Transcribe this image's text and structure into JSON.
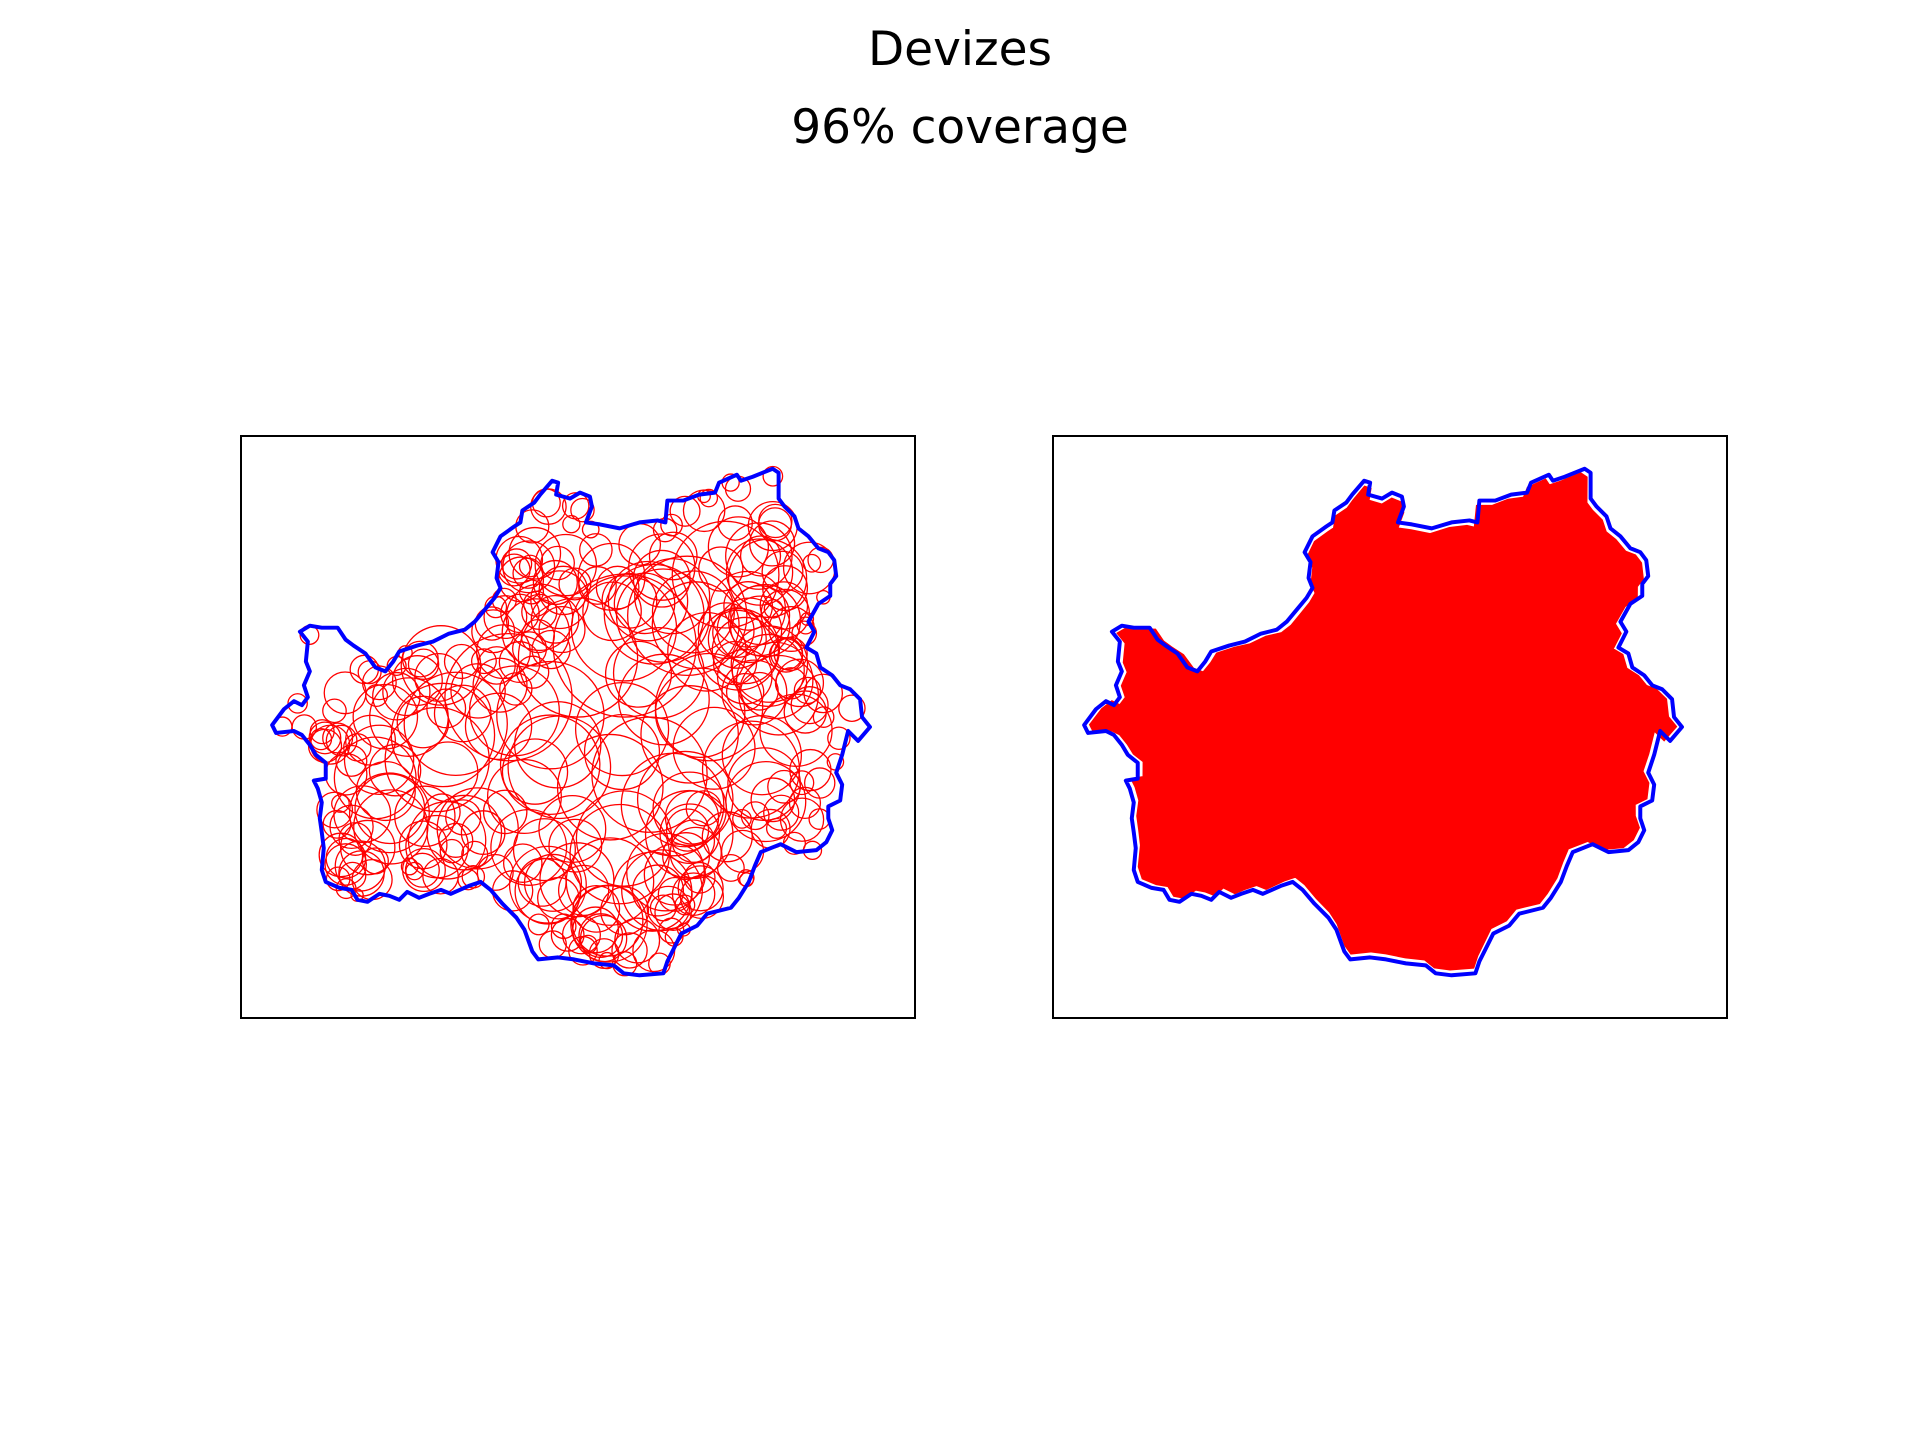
{
  "figure": {
    "title": "Devizes",
    "subtitle": "96% coverage"
  },
  "colors": {
    "boundary": "#0000ff",
    "circles": "#ff0000",
    "fill": "#ff0000",
    "frame": "#000000",
    "background": "#ffffff"
  },
  "panels": [
    {
      "id": "left",
      "content": "boundary-with-circles"
    },
    {
      "id": "right",
      "content": "boundary-with-filled-coverage"
    }
  ],
  "coverage_percent": 96
}
